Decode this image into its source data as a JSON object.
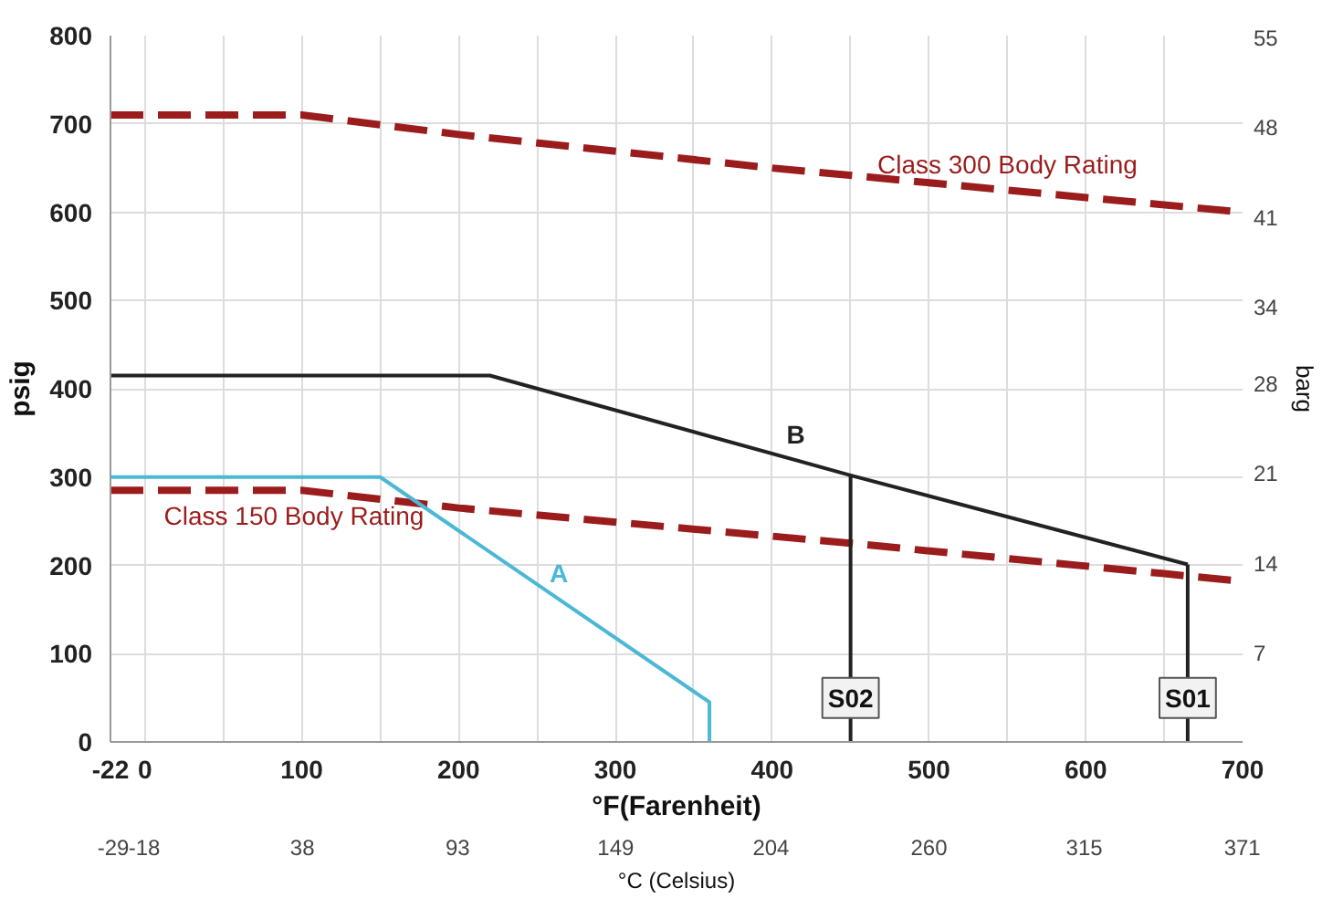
{
  "chart_data": {
    "type": "line",
    "xlabel": "°F(Farenheit)",
    "x2label": "°C (Celsius)",
    "ylabel": "psig",
    "y2label": "barg",
    "xlim": [
      -22,
      700
    ],
    "ylim": [
      0,
      800
    ],
    "xticks": [
      -22,
      0,
      {
        "value": 50,
        "label": null
      },
      100,
      {
        "value": 150,
        "label": null
      },
      200,
      {
        "value": 250,
        "label": null
      },
      300,
      {
        "value": 350,
        "label": null
      },
      400,
      {
        "value": 450,
        "label": null
      },
      500,
      {
        "value": 550,
        "label": null
      },
      600,
      {
        "value": 650,
        "label": null
      },
      700
    ],
    "x2lim": [
      -30,
      371.1
    ],
    "x2ticks": [
      -29,
      -18,
      38,
      93,
      149,
      204,
      260,
      315,
      371
    ],
    "yticks": [
      0,
      100,
      200,
      300,
      400,
      500,
      600,
      700,
      800
    ],
    "y2lim": [
      0,
      55.16
    ],
    "y2ticks": [
      7,
      14,
      21,
      28,
      34,
      41,
      48,
      55
    ],
    "grid": true,
    "series": [
      {
        "color": "#9b1c1c",
        "line_style": "dashed",
        "x": [
          -22,
          100,
          200,
          400,
          700
        ],
        "values": [
          710,
          710,
          688,
          650,
          600
        ]
      },
      {
        "color": "#9b1c1c",
        "line_style": "dashed",
        "x": [
          -22,
          100,
          200,
          450,
          700
        ],
        "values": [
          285,
          285,
          265,
          225,
          182
        ]
      },
      {
        "color": "#4bb8d6",
        "line_style": "solid",
        "x": [
          -22,
          150,
          360,
          360
        ],
        "values": [
          300,
          300,
          45,
          0
        ]
      },
      {
        "color": "#222222",
        "line_style": "solid",
        "x": [
          -22,
          220,
          450,
          665
        ],
        "values": [
          415,
          415,
          302,
          201
        ]
      },
      {
        "color": "#222222",
        "line_style": "solid",
        "x": [
          450,
          450
        ],
        "values": [
          302,
          0
        ]
      },
      {
        "color": "#222222",
        "line_style": "solid",
        "x": [
          665,
          665
        ],
        "values": [
          201,
          0
        ]
      }
    ],
    "annotations": [
      {
        "text": "Class 300 Body Rating",
        "x": 550,
        "y": 625
      },
      {
        "text": "Class 150 Body Rating",
        "x": 95,
        "y": 285
      },
      {
        "text": "A",
        "x": 264,
        "y": 162
      },
      {
        "text": "B",
        "x": 415,
        "y": 319
      },
      {
        "text": "S02",
        "x": 450,
        "y": 50
      },
      {
        "text": "S01",
        "x": 665,
        "y": 50
      }
    ]
  }
}
